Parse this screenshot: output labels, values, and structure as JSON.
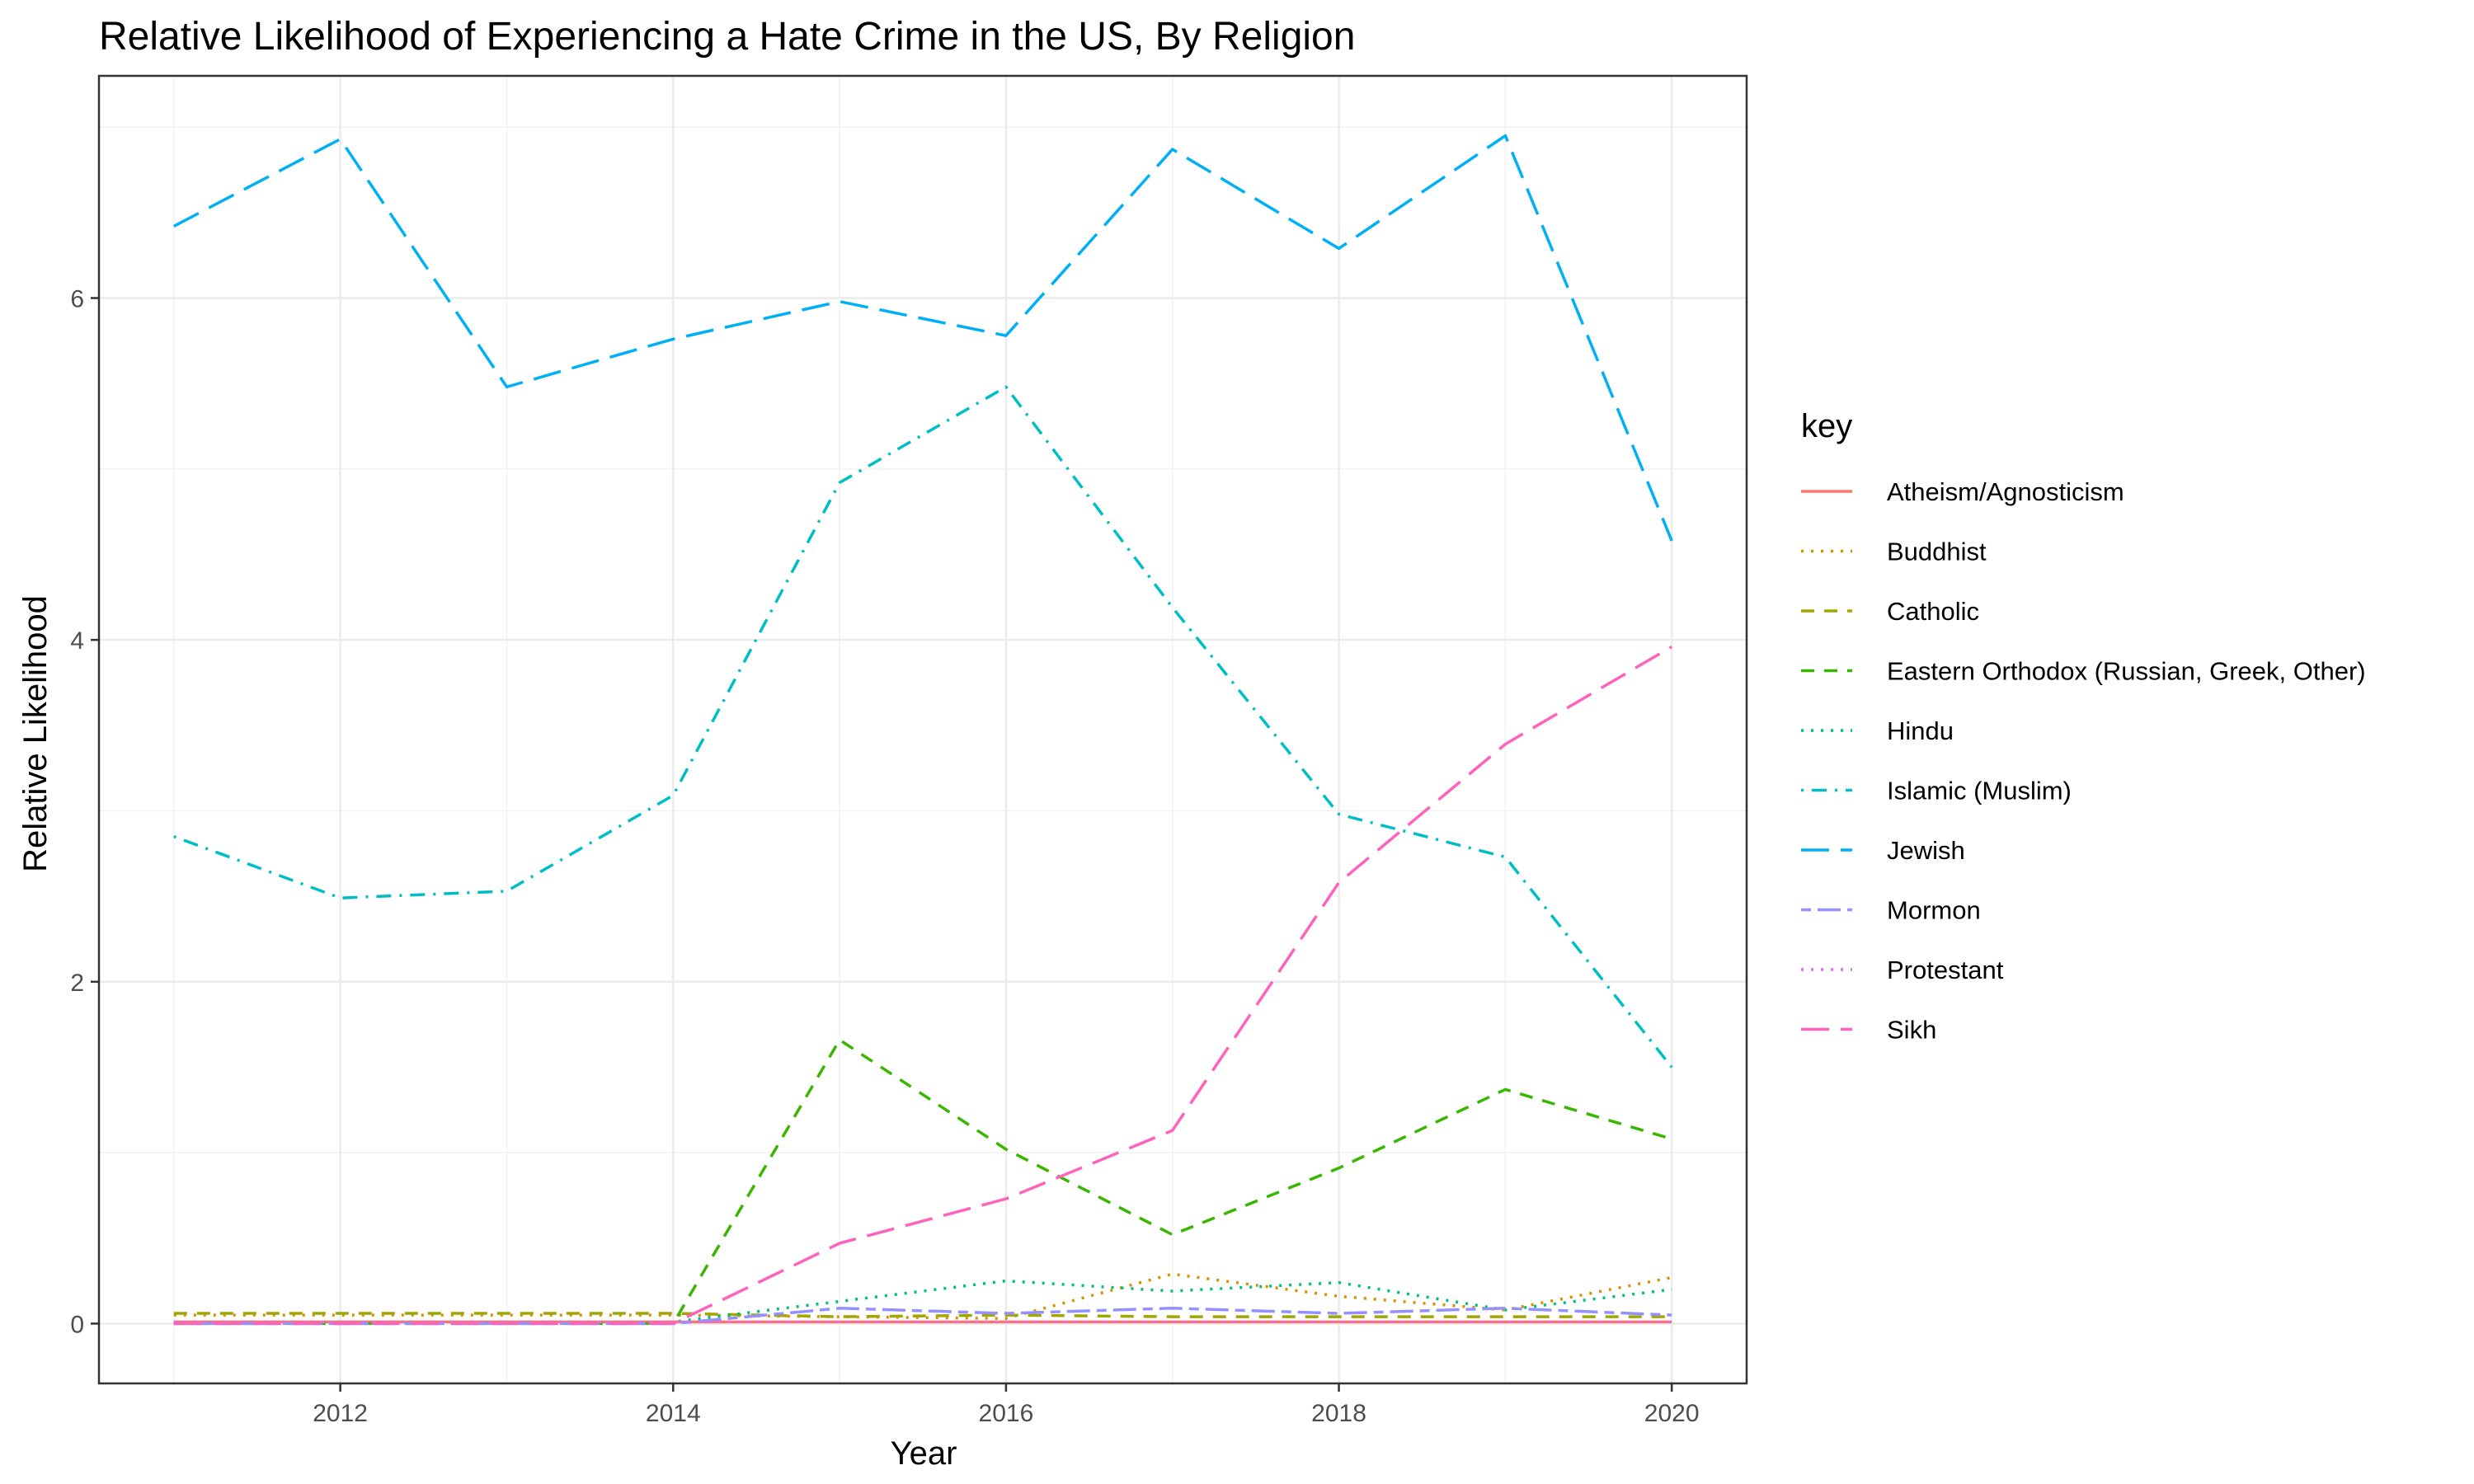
{
  "chart_data": {
    "type": "line",
    "title": "Relative Likelihood of Experiencing a Hate Crime in the US, By Religion",
    "xlabel": "Year",
    "ylabel": "Relative Likelihood",
    "x": [
      2011,
      2012,
      2013,
      2014,
      2015,
      2016,
      2017,
      2018,
      2019,
      2020
    ],
    "xlim": [
      2010.55,
      2020.45
    ],
    "ylim": [
      -0.35,
      7.3
    ],
    "x_ticks": [
      2012,
      2014,
      2016,
      2018,
      2020
    ],
    "y_ticks": [
      0,
      2,
      4,
      6
    ],
    "grid": true,
    "legend": {
      "title": "key",
      "position": "right"
    },
    "series": [
      {
        "name": "Atheism/Agnosticism",
        "color": "#F8766D",
        "dash": "solid",
        "values": [
          0.01,
          0.01,
          0.01,
          0.01,
          0.01,
          0.01,
          0.01,
          0.01,
          0.01,
          0.01
        ]
      },
      {
        "name": "Buddhist",
        "color": "#D89000",
        "dash": "dotted",
        "values": [
          0.05,
          0.05,
          0.05,
          0.05,
          0.04,
          0.03,
          0.29,
          0.16,
          0.08,
          0.27
        ]
      },
      {
        "name": "Catholic",
        "color": "#A3A500",
        "dash": "dashed",
        "values": [
          0.06,
          0.06,
          0.06,
          0.06,
          0.04,
          0.05,
          0.04,
          0.04,
          0.04,
          0.04
        ]
      },
      {
        "name": "Eastern Orthodox (Russian, Greek, Other)",
        "color": "#39B600",
        "dash": "dashed",
        "values": [
          0.0,
          0.0,
          0.0,
          0.0,
          1.66,
          1.02,
          0.52,
          0.91,
          1.37,
          1.08
        ]
      },
      {
        "name": "Hindu",
        "color": "#00BF7D",
        "dash": "dotted",
        "values": [
          0.01,
          0.01,
          0.01,
          0.01,
          0.13,
          0.25,
          0.19,
          0.24,
          0.08,
          0.2
        ]
      },
      {
        "name": "Islamic (Muslim)",
        "color": "#00BFC4",
        "dash": "dotdash",
        "values": [
          2.85,
          2.49,
          2.53,
          3.09,
          4.92,
          5.48,
          4.19,
          2.98,
          2.73,
          1.5
        ]
      },
      {
        "name": "Jewish",
        "color": "#00B0F6",
        "dash": "longdash",
        "values": [
          6.42,
          6.93,
          5.48,
          5.76,
          5.98,
          5.78,
          6.87,
          6.29,
          6.95,
          4.58
        ]
      },
      {
        "name": "Mormon",
        "color": "#9590FF",
        "dash": "twodash",
        "values": [
          0.0,
          0.0,
          0.0,
          0.0,
          0.09,
          0.06,
          0.09,
          0.06,
          0.09,
          0.05
        ]
      },
      {
        "name": "Protestant",
        "color": "#E76BF3",
        "dash": "dotted",
        "values": [
          0.01,
          0.01,
          0.01,
          0.01,
          0.01,
          0.01,
          0.01,
          0.01,
          0.01,
          0.01
        ]
      },
      {
        "name": "Sikh",
        "color": "#FF62BC",
        "dash": "longdash",
        "values": [
          0.0,
          0.0,
          0.0,
          0.0,
          0.47,
          0.73,
          1.13,
          2.58,
          3.39,
          3.96
        ]
      }
    ]
  }
}
